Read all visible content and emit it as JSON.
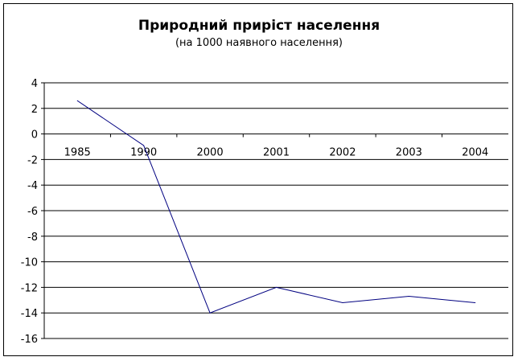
{
  "chart_data": {
    "type": "line",
    "title": "Природний приріст населення",
    "subtitle": "(на 1000 наявного населення)",
    "categories": [
      "1985",
      "1990",
      "2000",
      "2001",
      "2002",
      "2003",
      "2004"
    ],
    "series": [
      {
        "values": [
          2.6,
          -0.9,
          -14.0,
          -12.0,
          -13.2,
          -12.7,
          -13.2
        ],
        "color": "#000080"
      }
    ],
    "ylim": [
      -16,
      4
    ],
    "yticks": [
      4,
      2,
      0,
      -2,
      -4,
      -6,
      -8,
      -10,
      -12,
      -14,
      -16
    ],
    "grid": true,
    "legend": "none"
  }
}
